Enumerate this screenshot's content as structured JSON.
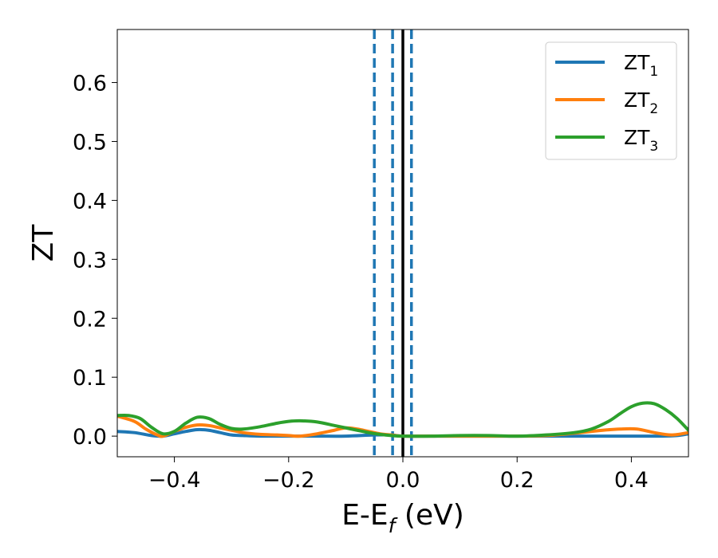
{
  "chart_data": {
    "type": "line",
    "xlabel": "E-E",
    "xlabel_sub": "f",
    "xlabel_unit": " (eV)",
    "ylabel": "ZT",
    "xlim": [
      -0.5,
      0.5
    ],
    "ylim": [
      -0.035,
      0.69
    ],
    "xticks": [
      -0.4,
      -0.2,
      0.0,
      0.2,
      0.4
    ],
    "xtick_labels": [
      "−0.4",
      "−0.2",
      "0.0",
      "0.2",
      "0.4"
    ],
    "yticks": [
      0.0,
      0.1,
      0.2,
      0.3,
      0.4,
      0.5,
      0.6
    ],
    "ytick_labels": [
      "0.0",
      "0.1",
      "0.2",
      "0.3",
      "0.4",
      "0.5",
      "0.6"
    ],
    "grid": false,
    "legend_position": "top-right",
    "vertical_lines": [
      {
        "x": -0.05,
        "style": "dashed",
        "color": "#1f77b4"
      },
      {
        "x": -0.018,
        "style": "dashed",
        "color": "#1f77b4"
      },
      {
        "x": 0.015,
        "style": "dashed",
        "color": "#1f77b4"
      },
      {
        "x": 0.0,
        "style": "solid",
        "color": "#000000"
      }
    ],
    "series": [
      {
        "name": "ZT",
        "name_sub": "1",
        "color": "#1f77b4",
        "x": [
          -0.5,
          -0.47,
          -0.44,
          -0.42,
          -0.4,
          -0.38,
          -0.36,
          -0.34,
          -0.32,
          -0.3,
          -0.28,
          -0.25,
          -0.2,
          -0.15,
          -0.1,
          -0.05,
          -0.02,
          0.0,
          0.05,
          0.1,
          0.15,
          0.2,
          0.25,
          0.3,
          0.35,
          0.4,
          0.45,
          0.48,
          0.5
        ],
        "y": [
          0.008,
          0.006,
          0.001,
          0.0,
          0.004,
          0.008,
          0.011,
          0.01,
          0.006,
          0.002,
          0.001,
          0.0,
          0.0,
          0.0,
          0.0,
          0.002,
          0.002,
          0.0,
          0.0,
          0.0,
          0.0,
          0.0,
          0.0,
          0.0,
          0.0,
          0.0,
          0.0,
          0.001,
          0.004
        ]
      },
      {
        "name": "ZT",
        "name_sub": "2",
        "color": "#ff7f0e",
        "x": [
          -0.5,
          -0.47,
          -0.45,
          -0.43,
          -0.42,
          -0.4,
          -0.38,
          -0.36,
          -0.34,
          -0.32,
          -0.3,
          -0.28,
          -0.25,
          -0.22,
          -0.2,
          -0.18,
          -0.15,
          -0.12,
          -0.1,
          -0.08,
          -0.06,
          -0.04,
          -0.02,
          0.0,
          0.05,
          0.1,
          0.15,
          0.2,
          0.25,
          0.3,
          0.35,
          0.38,
          0.41,
          0.44,
          0.47,
          0.5
        ],
        "y": [
          0.034,
          0.025,
          0.012,
          0.002,
          0.0,
          0.008,
          0.015,
          0.019,
          0.018,
          0.014,
          0.01,
          0.006,
          0.003,
          0.002,
          0.001,
          0.0,
          0.004,
          0.01,
          0.014,
          0.012,
          0.008,
          0.004,
          0.002,
          0.0,
          0.0,
          0.0,
          0.0,
          0.0,
          0.001,
          0.005,
          0.01,
          0.012,
          0.012,
          0.006,
          0.002,
          0.006
        ]
      },
      {
        "name": "ZT",
        "name_sub": "3",
        "color": "#2ca02c",
        "x": [
          -0.5,
          -0.48,
          -0.46,
          -0.44,
          -0.42,
          -0.4,
          -0.38,
          -0.36,
          -0.34,
          -0.32,
          -0.3,
          -0.28,
          -0.25,
          -0.22,
          -0.2,
          -0.18,
          -0.15,
          -0.12,
          -0.1,
          -0.08,
          -0.06,
          -0.04,
          -0.02,
          0.0,
          0.05,
          0.1,
          0.15,
          0.2,
          0.25,
          0.3,
          0.33,
          0.36,
          0.38,
          0.4,
          0.42,
          0.44,
          0.46,
          0.48,
          0.5
        ],
        "y": [
          0.035,
          0.035,
          0.03,
          0.015,
          0.004,
          0.008,
          0.022,
          0.032,
          0.03,
          0.02,
          0.013,
          0.012,
          0.016,
          0.022,
          0.025,
          0.026,
          0.024,
          0.018,
          0.014,
          0.01,
          0.006,
          0.003,
          0.001,
          0.0,
          0.0,
          0.001,
          0.001,
          0.0,
          0.002,
          0.006,
          0.012,
          0.025,
          0.038,
          0.05,
          0.056,
          0.055,
          0.045,
          0.03,
          0.01
        ]
      }
    ]
  }
}
